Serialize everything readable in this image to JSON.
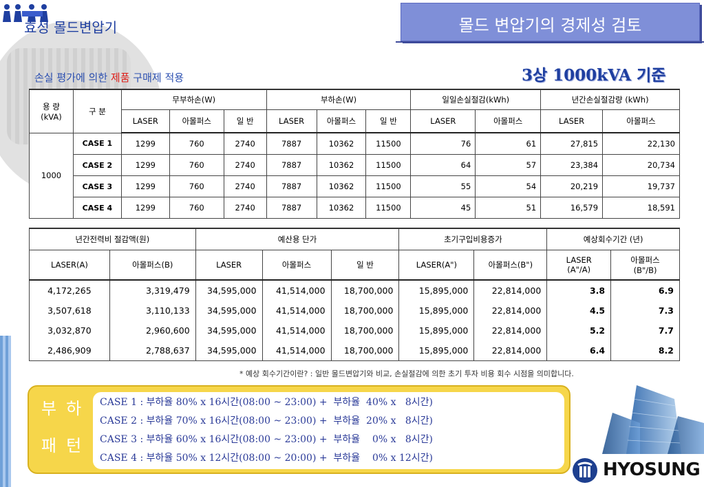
{
  "header": {
    "company_title": "효성 몰드변압기",
    "slide_title": "몰드 변압기의 경제성 검토",
    "subtitle_left_pre": "손실 평가에 의한 ",
    "subtitle_left_red": "제품",
    "subtitle_left_post": " 구매제 적용",
    "subtitle_right": "3상 1000kVA 기준"
  },
  "table1": {
    "capacity_header": [
      "용 량",
      "(kVA)"
    ],
    "division_header": "구 분",
    "group_headers": [
      "무부하손(W)",
      "부하손(W)",
      "일일손실절감(kWh)",
      "년간손실절감량 (kWh)"
    ],
    "sub_headers": [
      "LASER",
      "아몰퍼스",
      "일 반",
      "LASER",
      "아몰퍼스",
      "일 반",
      "LASER",
      "아몰퍼스",
      "LASER",
      "아몰퍼스"
    ],
    "capacity_value": "1000",
    "rows": [
      {
        "case": "CASE 1",
        "cells": [
          "1299",
          "760",
          "2740",
          "7887",
          "10362",
          "11500",
          "76",
          "61",
          "27,815",
          "22,130"
        ]
      },
      {
        "case": "CASE 2",
        "cells": [
          "1299",
          "760",
          "2740",
          "7887",
          "10362",
          "11500",
          "64",
          "57",
          "23,384",
          "20,734"
        ]
      },
      {
        "case": "CASE 3",
        "cells": [
          "1299",
          "760",
          "2740",
          "7887",
          "10362",
          "11500",
          "55",
          "54",
          "20,219",
          "19,737"
        ]
      },
      {
        "case": "CASE 4",
        "cells": [
          "1299",
          "760",
          "2740",
          "7887",
          "10362",
          "11500",
          "45",
          "51",
          "16,579",
          "18,591"
        ]
      }
    ]
  },
  "table2": {
    "group_headers": [
      "년간전력비 절감액(원)",
      "예산용 단가",
      "초기구입비용증가",
      "예상회수기간 (년)"
    ],
    "sub_headers": [
      "LASER(A)",
      "아몰퍼스(B)",
      "LASER",
      "아몰퍼스",
      "일 반",
      "LASER(A\")",
      "아몰퍼스(B\")"
    ],
    "payback_headers": [
      [
        "LASER",
        "(A\"/A)"
      ],
      [
        "아몰퍼스",
        "(B\"/B)"
      ]
    ],
    "rows": [
      [
        "4,172,265",
        "3,319,479",
        "34,595,000",
        "41,514,000",
        "18,700,000",
        "15,895,000",
        "22,814,000",
        "3.8",
        "6.9"
      ],
      [
        "3,507,618",
        "3,110,133",
        "34,595,000",
        "41,514,000",
        "18,700,000",
        "15,895,000",
        "22,814,000",
        "4.5",
        "7.3"
      ],
      [
        "3,032,870",
        "2,960,600",
        "34,595,000",
        "41,514,000",
        "18,700,000",
        "15,895,000",
        "22,814,000",
        "5.2",
        "7.7"
      ],
      [
        "2,486,909",
        "2,788,637",
        "34,595,000",
        "41,514,000",
        "18,700,000",
        "15,895,000",
        "22,814,000",
        "6.4",
        "8.2"
      ]
    ]
  },
  "note": "* 예상 회수기간이란? : 일반 몰드변압기와 비교, 손실절감에 의한 초기 투자 비용 회수 시점을 의미합니다.",
  "load_pattern": {
    "label_line1": "부하",
    "label_line2": "패턴",
    "cases": [
      "CASE 1 : 부하율 80% x 16시간(08:00 ~ 23:00) +  부하율  40% x   8시간)",
      "CASE 2 : 부하율 70% x 16시간(08:00 ~ 23:00) +  부하율  20% x   8시간)",
      "CASE 3 : 부하율 60% x 16시간(08:00 ~ 23:00) +  부하율    0% x   8시간)",
      "CASE 4 : 부하율 50% x 12시간(08:00 ~ 20:00) +  부하율    0% x 12시간)"
    ]
  },
  "brand": {
    "logo_text": "HYOSUNG"
  },
  "colors": {
    "title_bg": "#7f8fd8",
    "accent_blue": "#1f3fa0",
    "yellow": "#f6d64a",
    "red": "#e0201a"
  }
}
